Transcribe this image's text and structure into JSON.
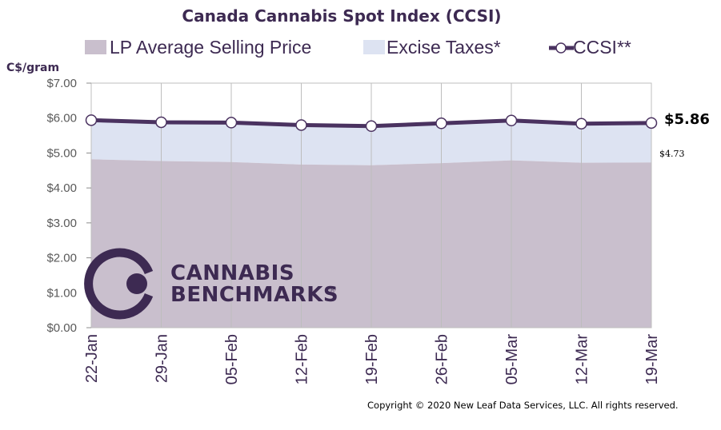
{
  "chart_data": {
    "type": "area",
    "title": "Canada Cannabis Spot Index (CCSI)",
    "ylabel": "C$/gram",
    "xlabel": "",
    "categories": [
      "22-Jan",
      "29-Jan",
      "05-Feb",
      "12-Feb",
      "19-Feb",
      "26-Feb",
      "05-Mar",
      "12-Mar",
      "19-Mar"
    ],
    "ylim": [
      0,
      7
    ],
    "yticks": [
      "$0.00",
      "$1.00",
      "$2.00",
      "$3.00",
      "$4.00",
      "$5.00",
      "$6.00",
      "$7.00"
    ],
    "grid": "vertical",
    "legend_placement": "top",
    "series": [
      {
        "name": "LP Average Selling Price",
        "kind": "area",
        "color": "#c9bfcd",
        "values": [
          4.82,
          4.77,
          4.74,
          4.67,
          4.65,
          4.71,
          4.79,
          4.72,
          4.73
        ]
      },
      {
        "name": "Excise Taxes*",
        "kind": "stacked-area",
        "color": "#dde3f2",
        "values": [
          1.12,
          1.11,
          1.13,
          1.13,
          1.12,
          1.14,
          1.14,
          1.12,
          1.13
        ]
      },
      {
        "name": "CCSI**",
        "kind": "line",
        "color": "#4a3260",
        "values": [
          5.94,
          5.88,
          5.87,
          5.8,
          5.77,
          5.85,
          5.93,
          5.84,
          5.86
        ]
      }
    ],
    "annotations": {
      "last_ccsi": "$5.86",
      "last_lp": "$4.73"
    }
  },
  "branding": {
    "logo_line1": "CANNABIS",
    "logo_line2": "BENCHMARKS",
    "logo_mark": "®"
  },
  "copyright": "Copyright © 2020 New Leaf Data Services, LLC. All rights reserved.",
  "colors": {
    "brand": "#3d2a52",
    "lp_area": "#c9bfcd",
    "excise_area": "#dde3f2",
    "ccsi_line": "#4a3260"
  }
}
